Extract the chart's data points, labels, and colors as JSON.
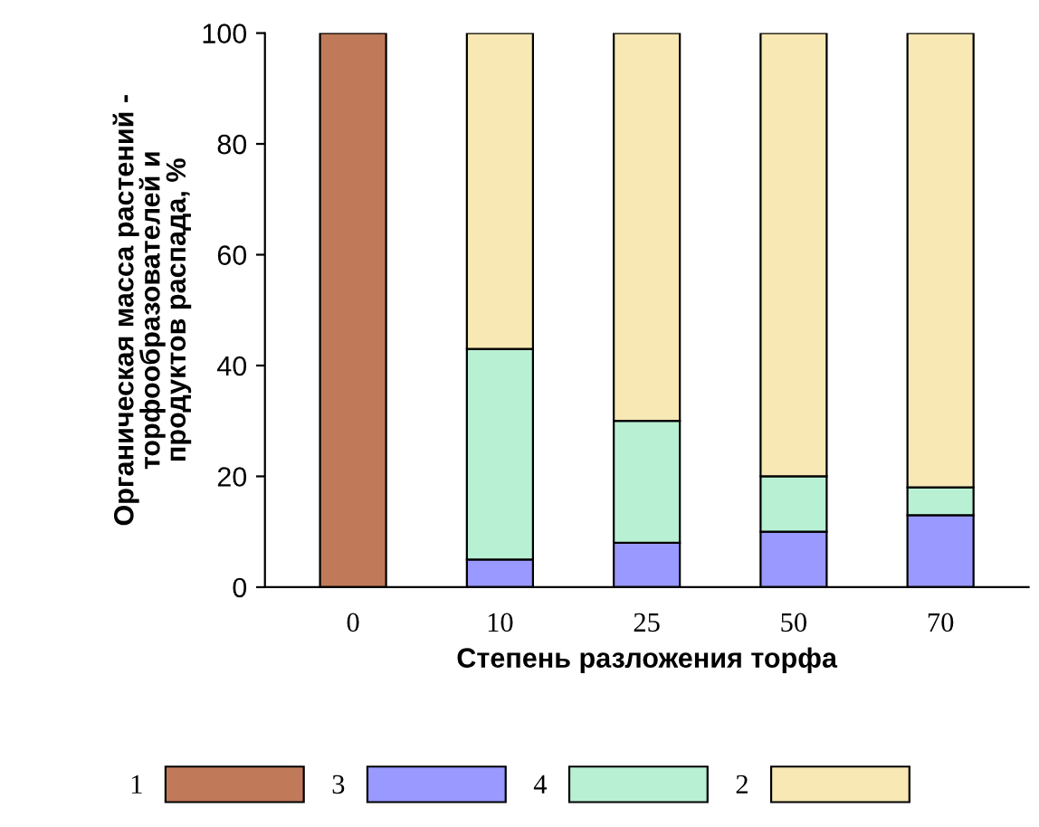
{
  "chart_data": {
    "type": "bar",
    "stacked": true,
    "xlabel": "Степень разложения торфа",
    "ylabel": "Органическая масса растений -\nторфообразователей и\nпродуктов распада, %",
    "categories": [
      "0",
      "10",
      "25",
      "50",
      "70"
    ],
    "series": [
      {
        "name": "1",
        "color": "#c07a5a",
        "values": [
          100,
          null,
          null,
          null,
          null
        ]
      },
      {
        "name": "3",
        "color": "#9999ff",
        "values": [
          null,
          5,
          8,
          10,
          13
        ]
      },
      {
        "name": "4",
        "color": "#b8f0d4",
        "values": [
          null,
          38,
          22,
          10,
          5
        ]
      },
      {
        "name": "2",
        "color": "#f7e8b4",
        "values": [
          null,
          57,
          70,
          80,
          82
        ]
      }
    ],
    "ylim": [
      0,
      100
    ],
    "yticks": [
      0,
      20,
      40,
      60,
      80,
      100
    ],
    "grid": false,
    "legend": "bottom"
  }
}
